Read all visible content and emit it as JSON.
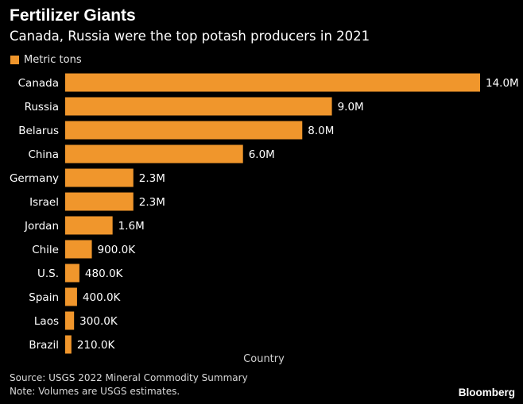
{
  "title": "Fertilizer Giants",
  "subtitle": "Canada, Russia were the top potash producers in 2021",
  "colors": {
    "bar": "#F0962C",
    "background": "#000000",
    "text": "#FFFFFF"
  },
  "chart_data": {
    "type": "bar",
    "orientation": "horizontal",
    "categories": [
      "Canada",
      "Russia",
      "Belarus",
      "China",
      "Germany",
      "Israel",
      "Jordan",
      "Chile",
      "U.S.",
      "Spain",
      "Laos",
      "Brazil"
    ],
    "series": [
      {
        "name": "Metric tons",
        "values": [
          14000000,
          9000000,
          8000000,
          6000000,
          2300000,
          2300000,
          1600000,
          900000,
          480000,
          400000,
          300000,
          210000
        ],
        "labels": [
          "14.0M",
          "9.0M",
          "8.0M",
          "6.0M",
          "2.3M",
          "2.3M",
          "1.6M",
          "900.0K",
          "480.0K",
          "400.0K",
          "300.0K",
          "210.0K"
        ]
      }
    ],
    "legend": "top-left",
    "xlabel": "Country",
    "xlim": [
      0,
      14000000
    ],
    "grid": false
  },
  "source": "Source: USGS 2022 Mineral Commodity Summary",
  "note": "Note: Volumes are USGS estimates.",
  "brand": "Bloomberg"
}
